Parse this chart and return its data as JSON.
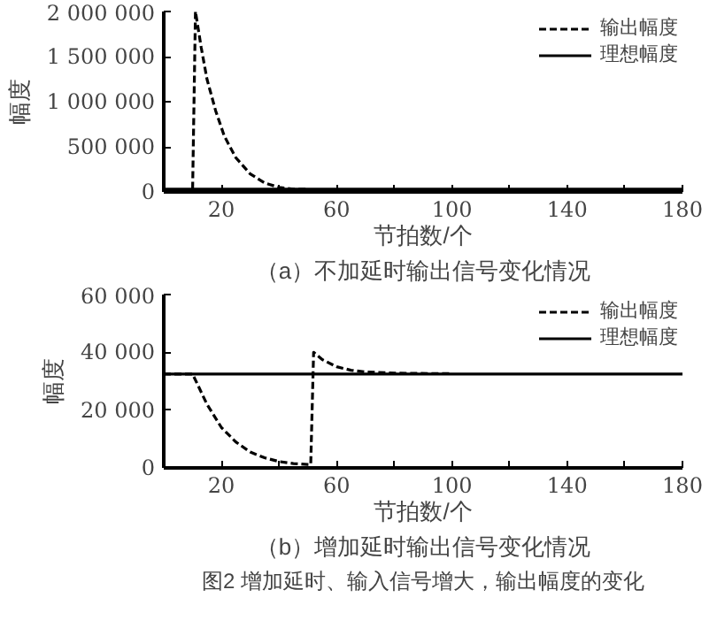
{
  "chart_data": [
    {
      "type": "line",
      "title": "（a）不加延时输出信号变化情况",
      "xlabel": "节拍数/个",
      "ylabel": "幅度",
      "xlim": [
        0,
        180
      ],
      "xticks": [
        20,
        {
          "value": 40,
          "label": null
        },
        60,
        {
          "value": 80,
          "label": null
        },
        100,
        {
          "value": 120,
          "label": null
        },
        140,
        {
          "value": 160,
          "label": null
        },
        180
      ],
      "ylim": [
        0,
        2000000
      ],
      "yticks": [
        {
          "value": 0,
          "label": "0"
        },
        {
          "value": 500000,
          "label": "500 000"
        },
        {
          "value": 1000000,
          "label": "1 000 000"
        },
        {
          "value": 1500000,
          "label": "1 500 000"
        },
        {
          "value": 2000000,
          "label": "2 000 000"
        }
      ],
      "legend": "top right",
      "grid": false,
      "series": [
        {
          "name": "输出幅度",
          "color": "#000000",
          "line_style": "dashed",
          "x": [
            0,
            10,
            10.5,
            11,
            13,
            15,
            18,
            21,
            25,
            30,
            35,
            40,
            45,
            50
          ],
          "values": [
            0,
            0,
            1000000,
            2000000,
            1600000,
            1250000,
            900000,
            620000,
            380000,
            200000,
            100000,
            50000,
            30000,
            30000
          ]
        },
        {
          "name": "理想幅度",
          "color": "#000000",
          "line_style": "solid",
          "x": [
            0,
            180
          ],
          "values": [
            30000,
            30000
          ]
        }
      ]
    },
    {
      "type": "line",
      "title": "（b）增加延时输出信号变化情况",
      "xlabel": "节拍数/个",
      "ylabel": "幅度",
      "xlim": [
        0,
        180
      ],
      "xticks": [
        20,
        {
          "value": 40,
          "label": null
        },
        60,
        {
          "value": 80,
          "label": null
        },
        100,
        {
          "value": 120,
          "label": null
        },
        140,
        {
          "value": 160,
          "label": null
        },
        180
      ],
      "ylim": [
        0,
        60000
      ],
      "yticks": [
        {
          "value": 0,
          "label": "0"
        },
        {
          "value": 20000,
          "label": "20 000"
        },
        {
          "value": 40000,
          "label": "40 000"
        },
        {
          "value": 60000,
          "label": "60 000"
        }
      ],
      "legend": "top right",
      "grid": false,
      "annotations": [
        "图2 增加延时、输入信号增大，输出幅度的变化"
      ],
      "series": [
        {
          "name": "输出幅度",
          "color": "#000000",
          "line_style": "dashed",
          "x": [
            0,
            10,
            15,
            20,
            25,
            30,
            35,
            40,
            45,
            50,
            51,
            52,
            55,
            60,
            65,
            70,
            80,
            100
          ],
          "values": [
            32500,
            32500,
            22000,
            14000,
            9000,
            5500,
            3500,
            2200,
            1500,
            1200,
            1200,
            40000,
            37500,
            35000,
            33800,
            33200,
            32800,
            32600
          ]
        },
        {
          "name": "理想幅度",
          "color": "#000000",
          "line_style": "solid",
          "x": [
            0,
            180
          ],
          "values": [
            32500,
            32500
          ]
        }
      ]
    }
  ]
}
